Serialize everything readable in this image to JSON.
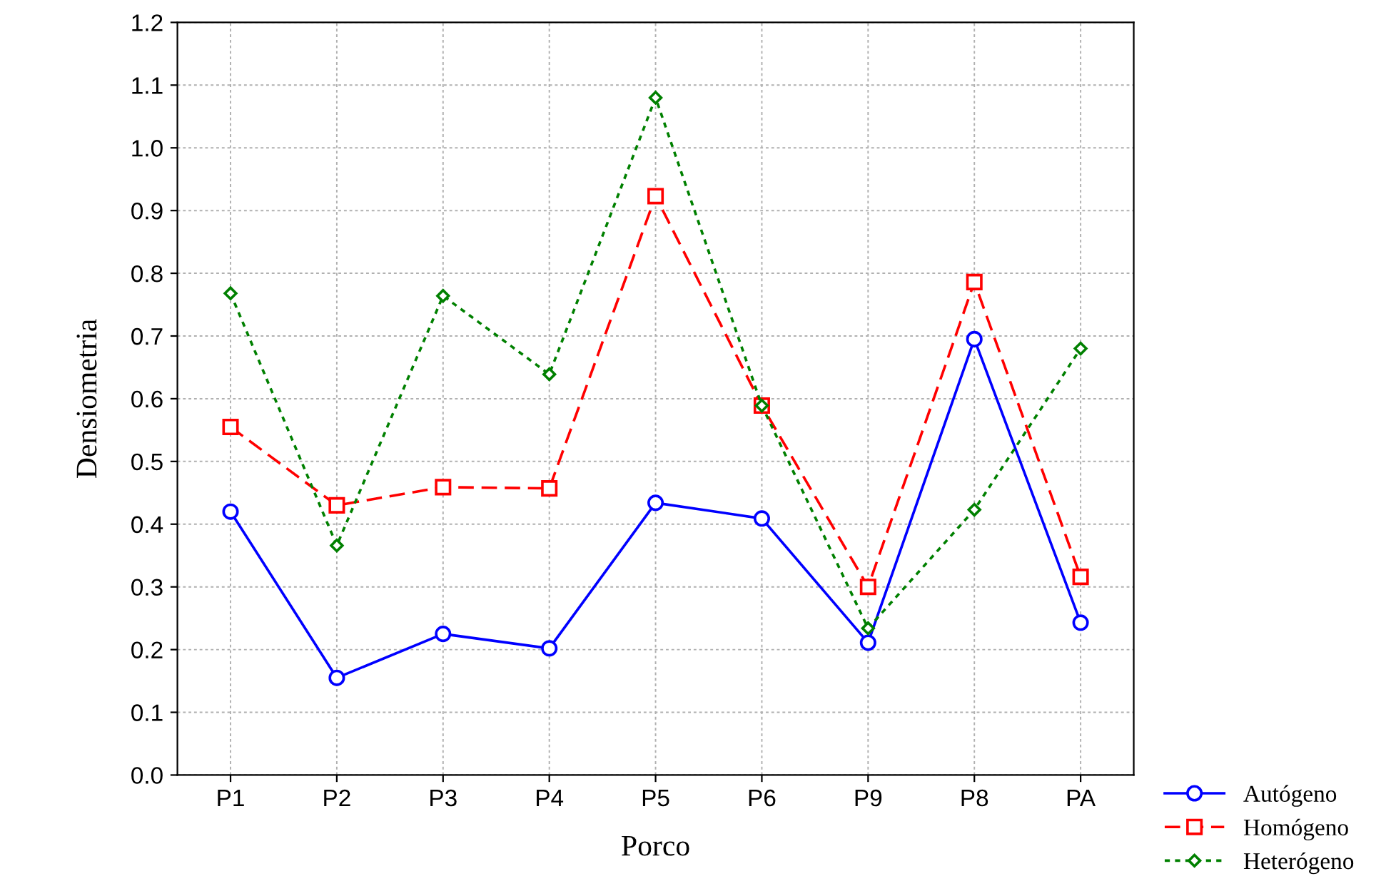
{
  "chart_data": {
    "type": "line",
    "xlabel": "Porco",
    "ylabel": "Densiometria",
    "categories": [
      "P1",
      "P2",
      "P3",
      "P4",
      "P5",
      "P6",
      "P9",
      "P8",
      "PA"
    ],
    "series": [
      {
        "name": "Autógeno",
        "color": "#0000ff",
        "marker": "circle",
        "line_style": "solid",
        "values": [
          0.42,
          0.155,
          0.225,
          0.202,
          0.434,
          0.409,
          0.211,
          0.695,
          0.243
        ]
      },
      {
        "name": "Homógeno",
        "color": "#ff0000",
        "marker": "square",
        "line_style": "dashed",
        "values": [
          0.555,
          0.43,
          0.459,
          0.457,
          0.923,
          0.589,
          0.3,
          0.786,
          0.316
        ]
      },
      {
        "name": "Heterógeno",
        "color": "#008000",
        "marker": "diamond",
        "line_style": "dotted",
        "values": [
          0.768,
          0.366,
          0.764,
          0.639,
          1.08,
          0.589,
          0.234,
          0.423,
          0.68
        ]
      }
    ],
    "ylim": [
      0,
      1.2
    ],
    "yticks": [
      {
        "value": 0,
        "label": "0.0"
      },
      0.1,
      0.2,
      0.3,
      0.4,
      0.5,
      0.6,
      0.7,
      0.8,
      0.9,
      {
        "value": 1.0,
        "label": "1.0"
      },
      1.1,
      1.2
    ],
    "grid": true,
    "legend": "bottom right"
  }
}
